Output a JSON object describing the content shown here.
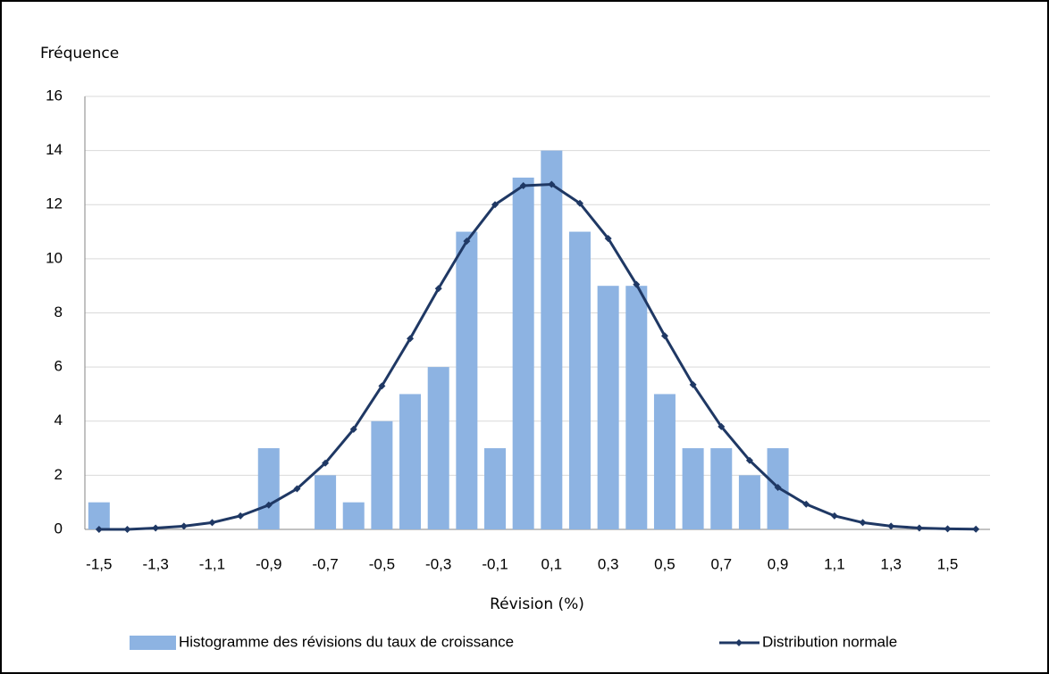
{
  "chart_data": {
    "type": "bar_line",
    "y_axis_label": "Fréquence",
    "x_axis_label": "Révision (%)",
    "categories": [
      "-1,5",
      null,
      "-1,3",
      null,
      "-1,1",
      null,
      "-0,9",
      null,
      "-0,7",
      null,
      "-0,5",
      null,
      "-0,3",
      null,
      "-0,1",
      null,
      "0,1",
      null,
      "0,3",
      null,
      "0,5",
      null,
      "0,7",
      null,
      "0,9",
      null,
      "1,1",
      null,
      "1,3",
      null,
      "1,5",
      null
    ],
    "series": [
      {
        "name": "Histogramme des révisions du taux de croissance",
        "type": "bar",
        "color": "#8db3e2",
        "values": [
          1,
          0,
          0,
          0,
          0,
          0,
          3,
          0,
          2,
          1,
          4,
          5,
          6,
          11,
          3,
          13,
          14,
          11,
          9,
          9,
          5,
          3,
          3,
          2,
          3,
          0,
          0,
          0,
          0,
          0,
          0,
          0
        ]
      },
      {
        "name": "Distribution normale",
        "type": "line",
        "color": "#1f3864",
        "values": [
          0,
          0,
          0.05,
          0.12,
          0.25,
          0.5,
          0.9,
          1.5,
          2.45,
          3.7,
          5.3,
          7.05,
          8.9,
          10.65,
          12,
          12.7,
          12.75,
          12.05,
          10.75,
          9.05,
          7.15,
          5.35,
          3.8,
          2.55,
          1.55,
          0.93,
          0.5,
          0.25,
          0.12,
          0.05,
          0.02,
          0.01
        ]
      }
    ],
    "ylim": [
      0,
      16
    ],
    "yticks": [
      0,
      2,
      4,
      6,
      8,
      10,
      12,
      14,
      16
    ],
    "grid": true,
    "legend": "bottom"
  }
}
